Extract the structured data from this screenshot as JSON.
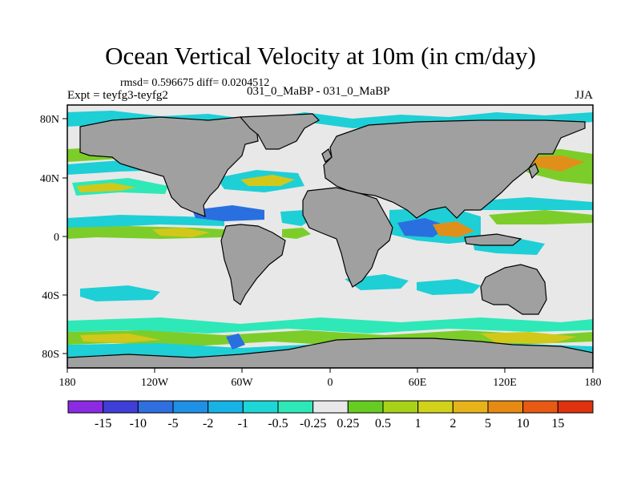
{
  "title": "Ocean Vertical Velocity at 10m (in cm/day)",
  "stats_line": "rmsd= 0.596675  diff= 0.0204512",
  "experiment_label": "Expt = teyfg3-teyfg2",
  "comparison_label": "031_0_MaBP - 031_0_MaBP",
  "season_label": "JJA",
  "lat_ticks": [
    "80N",
    "40N",
    "0",
    "40S",
    "80S"
  ],
  "lon_ticks": [
    "180",
    "120W",
    "60W",
    "0",
    "60E",
    "120E",
    "180"
  ],
  "colorbar": {
    "colors": [
      "#8a2be2",
      "#3f3fd8",
      "#2f6fe0",
      "#1e90e6",
      "#17b3e6",
      "#1ed6d6",
      "#2ee8b8",
      "#e8e8e8",
      "#66cc22",
      "#a8d21a",
      "#d2d21a",
      "#e6b41a",
      "#e68a14",
      "#e65a14",
      "#e0320f"
    ],
    "labels": [
      "-15",
      "-10",
      "-5",
      "-2",
      "-1",
      "-0.5",
      "-0.25",
      "0.25",
      "0.5",
      "1",
      "2",
      "5",
      "10",
      "15"
    ]
  },
  "colors": {
    "land": "#a0a0a0",
    "neutral_ocean": "#e8e8e8",
    "cyan": "#1ecfd6",
    "green": "#7ccd2a",
    "yellow": "#d2c81a",
    "orange": "#e0901a",
    "blue": "#2a6fe0"
  }
}
